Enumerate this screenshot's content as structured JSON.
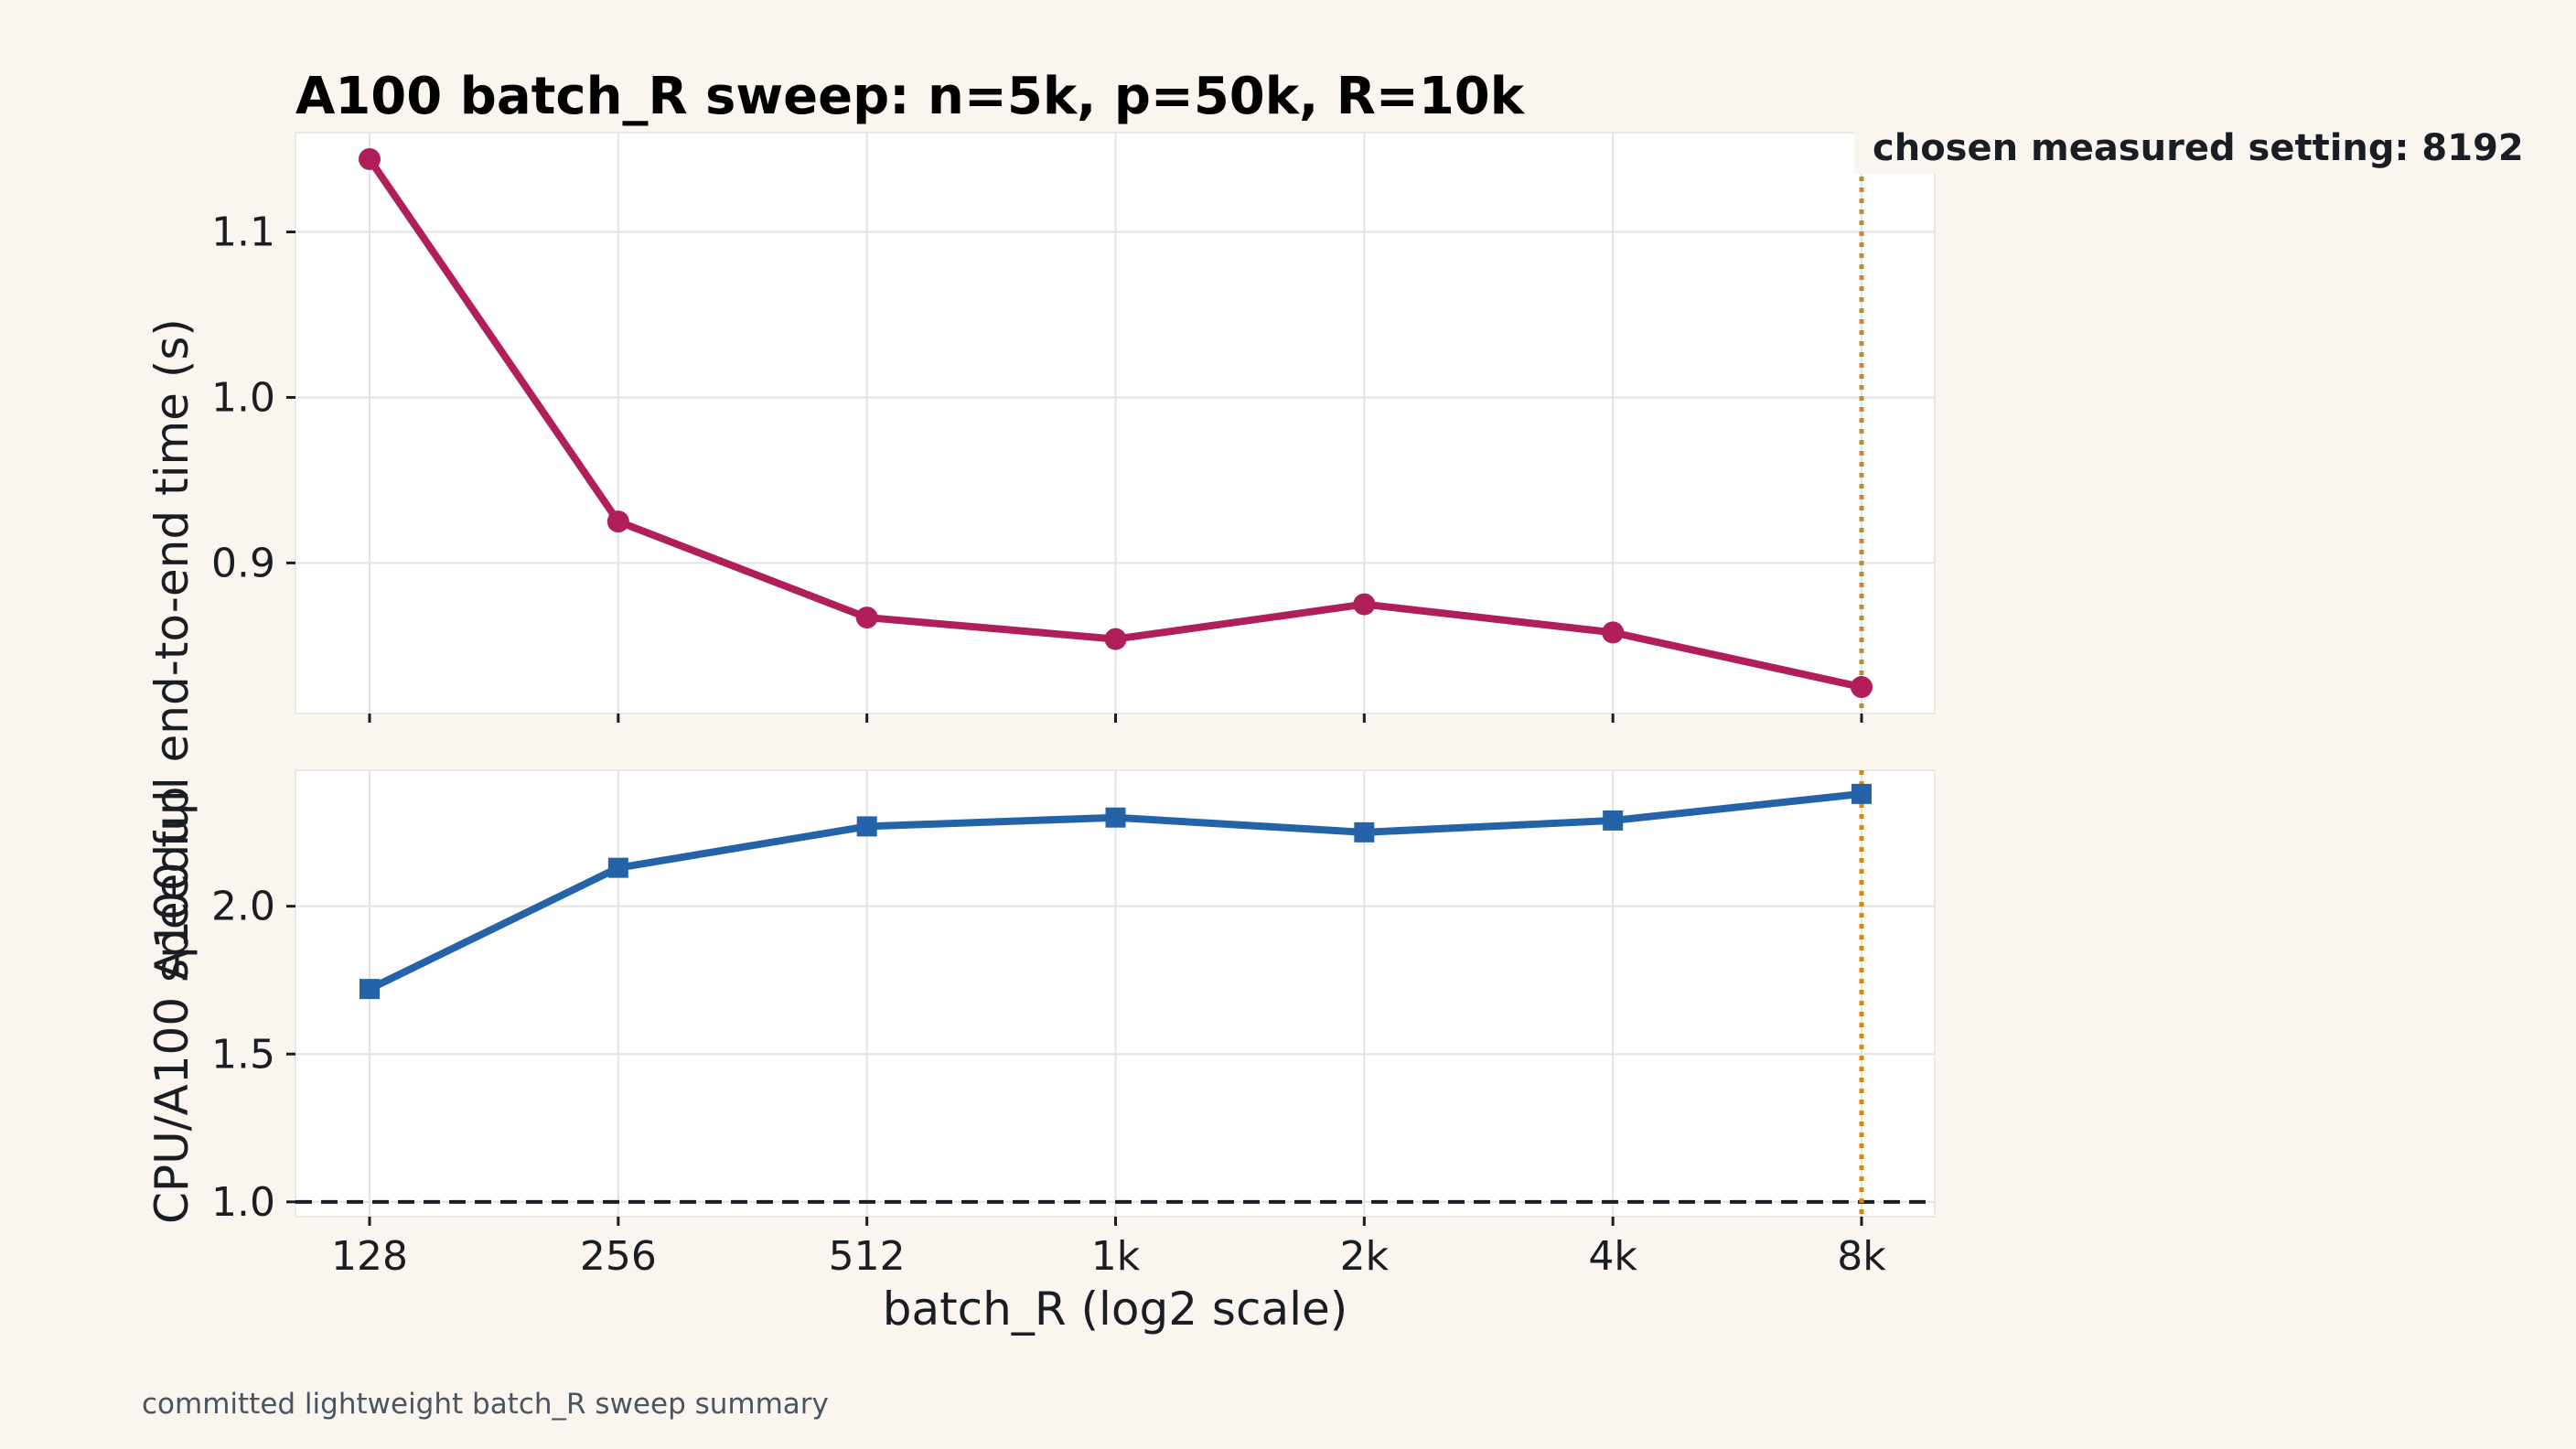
{
  "title": "A100 batch_R sweep: n=5k, p=50k, R=10k",
  "footer": "committed lightweight batch_R sweep summary",
  "annotation": "chosen measured setting: 8192",
  "colors": {
    "time_series": "#b01f5a",
    "speedup_series": "#2563a8",
    "highlight_line": "#d18a17",
    "baseline": "#1a1d24",
    "background": "#faf6ef",
    "panel": "#ffffff",
    "grid": "#e3e3e3"
  },
  "chart_data": [
    {
      "type": "line",
      "title": "A100 batch_R sweep: n=5k, p=50k, R=10k",
      "xlabel": "",
      "ylabel": "A100 full end-to-end time (s)",
      "x_scale": "log2",
      "categories": [
        "128",
        "256",
        "512",
        "1k",
        "2k",
        "4k",
        "8k"
      ],
      "x": [
        128,
        256,
        512,
        1024,
        2048,
        4096,
        8192
      ],
      "series": [
        {
          "values": [
            1.144,
            0.925,
            0.867,
            0.854,
            0.875,
            0.858,
            0.825
          ],
          "marker": "circle"
        }
      ],
      "ylim": [
        0.809,
        1.16
      ],
      "yticks": [
        "0.9",
        "1.0",
        "1.1"
      ],
      "grid": true,
      "highlight_x": 8192
    },
    {
      "type": "line",
      "xlabel": "batch_R (log2 scale)",
      "ylabel": "CPU/A100 speedup",
      "x_scale": "log2",
      "categories": [
        "128",
        "256",
        "512",
        "1k",
        "2k",
        "4k",
        "8k"
      ],
      "x": [
        128,
        256,
        512,
        1024,
        2048,
        4096,
        8192
      ],
      "series": [
        {
          "values": [
            1.72,
            2.13,
            2.27,
            2.3,
            2.25,
            2.29,
            2.38
          ],
          "marker": "square"
        }
      ],
      "ylim": [
        0.95,
        2.46
      ],
      "yticks": [
        "1.0",
        "1.5",
        "2.0"
      ],
      "reference_line_y": 1.0,
      "grid": true,
      "highlight_x": 8192
    }
  ]
}
